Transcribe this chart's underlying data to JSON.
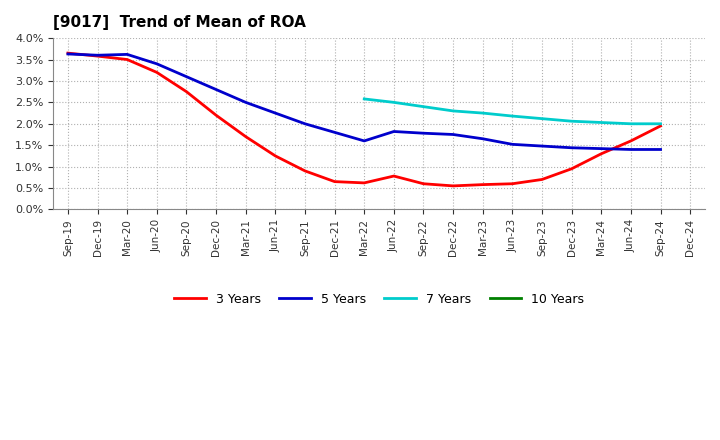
{
  "title": "[9017]  Trend of Mean of ROA",
  "x_labels": [
    "Sep-19",
    "Dec-19",
    "Mar-20",
    "Jun-20",
    "Sep-20",
    "Dec-20",
    "Mar-21",
    "Jun-21",
    "Sep-21",
    "Dec-21",
    "Mar-22",
    "Jun-22",
    "Sep-22",
    "Dec-22",
    "Mar-23",
    "Jun-23",
    "Sep-23",
    "Dec-23",
    "Mar-24",
    "Jun-24",
    "Sep-24",
    "Dec-24"
  ],
  "series_3yr": [
    3.65,
    3.58,
    3.5,
    3.2,
    2.75,
    2.2,
    1.7,
    1.25,
    0.9,
    0.65,
    0.62,
    0.78,
    0.6,
    0.55,
    0.58,
    0.6,
    0.7,
    0.95,
    1.3,
    1.6,
    1.95,
    null
  ],
  "series_5yr": [
    3.63,
    3.6,
    3.62,
    3.4,
    3.1,
    2.8,
    2.5,
    2.25,
    2.0,
    1.8,
    1.6,
    1.82,
    1.78,
    1.75,
    1.65,
    1.52,
    1.48,
    1.44,
    1.42,
    1.4,
    1.4,
    null
  ],
  "series_7yr": [
    null,
    null,
    null,
    null,
    null,
    null,
    null,
    null,
    null,
    null,
    2.58,
    2.5,
    2.4,
    2.3,
    2.25,
    2.18,
    2.12,
    2.06,
    2.03,
    2.0,
    2.0,
    null
  ],
  "series_10yr": [
    null,
    null,
    null,
    null,
    null,
    null,
    null,
    null,
    null,
    null,
    null,
    null,
    null,
    null,
    null,
    null,
    null,
    null,
    null,
    null,
    null,
    null
  ],
  "color_3yr": "#ff0000",
  "color_5yr": "#0000cc",
  "color_7yr": "#00cccc",
  "color_10yr": "#008000",
  "ylim": [
    0.0,
    4.0
  ],
  "yticks": [
    0.0,
    0.5,
    1.0,
    1.5,
    2.0,
    2.5,
    3.0,
    3.5,
    4.0
  ],
  "background_color": "#ffffff",
  "grid_color": "#b0b0b0"
}
